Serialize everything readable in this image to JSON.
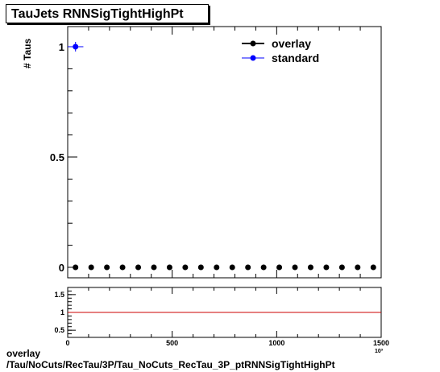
{
  "header": {
    "title": "TauJets RNNSigTightHighPt"
  },
  "footer": {
    "line1": "overlay",
    "line2": "/Tau/NoCuts/RecTau/3P/Tau_NoCuts_RecTau_3P_ptRNNSigTightHighPt"
  },
  "chart_data": [
    {
      "type": "scatter",
      "title": "TauJets RNNSigTightHighPt",
      "ylabel": "# Taus",
      "xlabel": "",
      "xlim": [
        0,
        1500
      ],
      "ylim": [
        0,
        1
      ],
      "x_ticks": [
        0,
        500,
        1000,
        1500
      ],
      "y_ticks": [
        "0",
        "0.5",
        "1"
      ],
      "x_exponent_label": "10³",
      "legend": {
        "placement": "top-right",
        "entries": [
          {
            "name": "overlay",
            "color": "#000000"
          },
          {
            "name": "standard",
            "color": "#0000ff"
          }
        ]
      },
      "series": [
        {
          "name": "overlay",
          "color": "#000000",
          "x": [
            37.5,
            112.5,
            187.5,
            262.5,
            337.5,
            412.5,
            487.5,
            562.5,
            637.5,
            712.5,
            787.5,
            862.5,
            937.5,
            1012.5,
            1087.5,
            1162.5,
            1237.5,
            1312.5,
            1387.5,
            1462.5
          ],
          "y": [
            0,
            0,
            0,
            0,
            0,
            0,
            0,
            0,
            0,
            0,
            0,
            0,
            0,
            0,
            0,
            0,
            0,
            0,
            0,
            0
          ]
        },
        {
          "name": "standard",
          "color": "#0000ff",
          "x": [
            37.5
          ],
          "y": [
            1
          ]
        }
      ]
    },
    {
      "type": "line",
      "title": "",
      "xlabel": "",
      "ylabel": "",
      "xlim": [
        0,
        1500
      ],
      "ylim": [
        0.3,
        1.7
      ],
      "x_ticks": [
        0,
        500,
        1000,
        1500
      ],
      "y_ticks": [
        "0.5",
        "1",
        "1.5"
      ],
      "reference_line": {
        "y": 1,
        "color": "#cc0000"
      }
    }
  ]
}
